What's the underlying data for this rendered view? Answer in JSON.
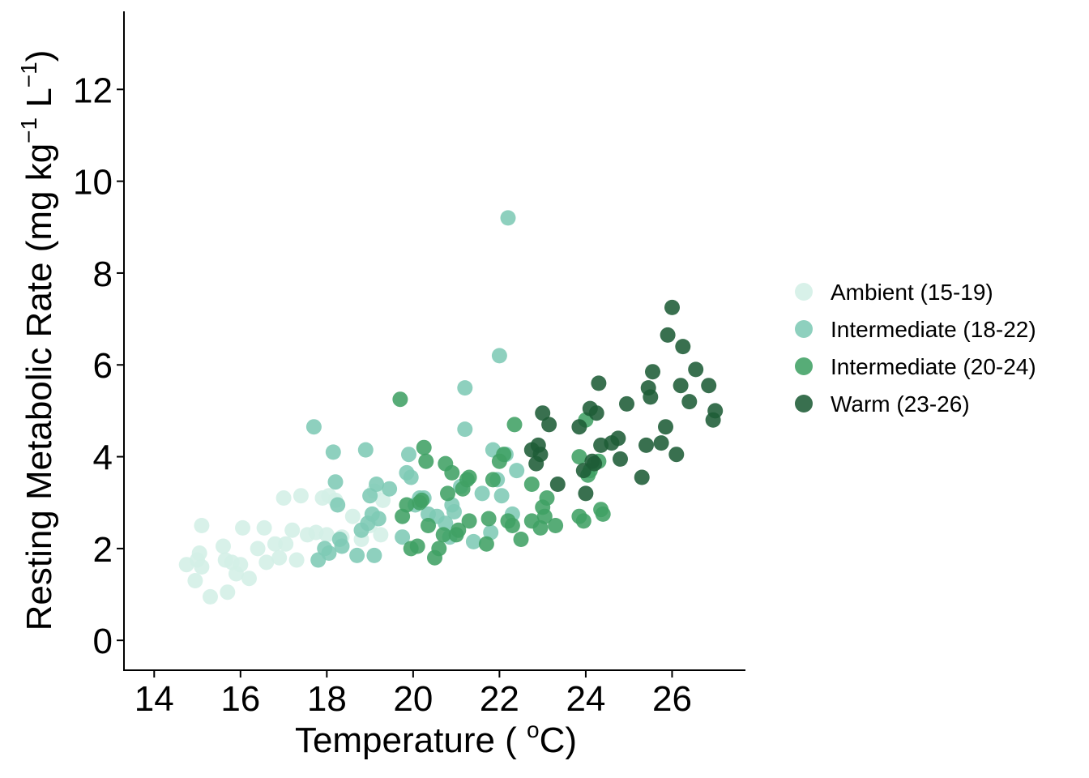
{
  "chart_data": {
    "type": "scatter",
    "xlabel_main": "Temperature ( ",
    "xlabel_degree": "o",
    "xlabel_unit": "C)",
    "ylabel_main": "Resting Metabolic Rate (mg kg",
    "ylabel_sup1": "−1",
    "ylabel_mid": " L",
    "ylabel_sup2": "−1",
    "ylabel_end": ")",
    "xlim": [
      13.3,
      27.7
    ],
    "ylim": [
      -0.65,
      13.7
    ],
    "xticks": [
      14,
      16,
      18,
      20,
      22,
      24,
      26
    ],
    "yticks": [
      0,
      2,
      4,
      6,
      8,
      10,
      12
    ],
    "grid": false,
    "legend_position": "right",
    "series": [
      {
        "name": "Ambient (15-19)",
        "color": "#d3efe6",
        "points": [
          [
            14.75,
            1.65
          ],
          [
            14.95,
            1.3
          ],
          [
            15.0,
            1.75
          ],
          [
            15.05,
            1.9
          ],
          [
            15.1,
            2.5
          ],
          [
            15.1,
            1.6
          ],
          [
            15.3,
            0.95
          ],
          [
            15.6,
            2.05
          ],
          [
            15.65,
            1.75
          ],
          [
            15.7,
            1.05
          ],
          [
            15.8,
            1.7
          ],
          [
            15.9,
            1.45
          ],
          [
            16.0,
            1.65
          ],
          [
            16.05,
            2.45
          ],
          [
            16.2,
            1.35
          ],
          [
            16.4,
            2.0
          ],
          [
            16.55,
            2.45
          ],
          [
            16.6,
            1.7
          ],
          [
            16.8,
            2.1
          ],
          [
            16.9,
            1.8
          ],
          [
            17.0,
            3.1
          ],
          [
            17.05,
            2.1
          ],
          [
            17.2,
            2.4
          ],
          [
            17.3,
            1.75
          ],
          [
            17.4,
            3.15
          ],
          [
            17.55,
            2.3
          ],
          [
            17.75,
            2.35
          ],
          [
            17.9,
            3.1
          ],
          [
            18.0,
            2.3
          ],
          [
            18.05,
            3.15
          ],
          [
            18.2,
            3.05
          ],
          [
            18.35,
            2.25
          ],
          [
            18.6,
            2.7
          ],
          [
            18.8,
            2.2
          ],
          [
            19.0,
            2.5
          ],
          [
            19.1,
            3.25
          ],
          [
            19.25,
            2.3
          ],
          [
            19.3,
            3.05
          ]
        ]
      },
      {
        "name": "Intermediate (18-22)",
        "color": "#7ecab5",
        "points": [
          [
            17.7,
            4.65
          ],
          [
            17.8,
            1.75
          ],
          [
            17.95,
            2.0
          ],
          [
            18.05,
            1.9
          ],
          [
            18.15,
            4.1
          ],
          [
            18.2,
            3.45
          ],
          [
            18.25,
            2.95
          ],
          [
            18.3,
            2.2
          ],
          [
            18.35,
            2.05
          ],
          [
            18.7,
            1.85
          ],
          [
            18.8,
            2.4
          ],
          [
            18.9,
            4.15
          ],
          [
            18.95,
            2.55
          ],
          [
            19.0,
            3.15
          ],
          [
            19.05,
            2.75
          ],
          [
            19.1,
            1.85
          ],
          [
            19.15,
            3.4
          ],
          [
            19.2,
            2.65
          ],
          [
            19.45,
            3.3
          ],
          [
            19.75,
            2.25
          ],
          [
            19.85,
            3.65
          ],
          [
            19.9,
            4.05
          ],
          [
            19.95,
            3.55
          ],
          [
            20.05,
            2.95
          ],
          [
            20.15,
            3.1
          ],
          [
            20.25,
            3.1
          ],
          [
            20.35,
            2.75
          ],
          [
            20.55,
            2.7
          ],
          [
            20.75,
            2.55
          ],
          [
            20.85,
            2.25
          ],
          [
            20.9,
            2.95
          ],
          [
            20.95,
            2.8
          ],
          [
            21.1,
            3.35
          ],
          [
            21.2,
            4.6
          ],
          [
            21.2,
            5.5
          ],
          [
            21.4,
            2.15
          ],
          [
            21.6,
            3.2
          ],
          [
            21.8,
            2.35
          ],
          [
            21.85,
            4.15
          ],
          [
            21.95,
            3.5
          ],
          [
            22.0,
            6.2
          ],
          [
            22.05,
            3.15
          ],
          [
            22.15,
            4.05
          ],
          [
            22.2,
            9.2
          ],
          [
            22.3,
            2.75
          ],
          [
            22.4,
            3.7
          ]
        ]
      },
      {
        "name": "Intermediate (20-24)",
        "color": "#40a064",
        "points": [
          [
            19.7,
            5.25
          ],
          [
            19.75,
            2.7
          ],
          [
            19.85,
            2.95
          ],
          [
            19.95,
            2.0
          ],
          [
            20.1,
            2.05
          ],
          [
            20.15,
            3.0
          ],
          [
            20.2,
            3.05
          ],
          [
            20.25,
            4.2
          ],
          [
            20.3,
            3.9
          ],
          [
            20.35,
            2.5
          ],
          [
            20.5,
            1.8
          ],
          [
            20.6,
            2.0
          ],
          [
            20.7,
            2.3
          ],
          [
            20.75,
            3.85
          ],
          [
            20.8,
            3.2
          ],
          [
            20.9,
            3.65
          ],
          [
            21.0,
            2.3
          ],
          [
            21.05,
            2.4
          ],
          [
            21.15,
            3.3
          ],
          [
            21.25,
            3.5
          ],
          [
            21.3,
            3.55
          ],
          [
            21.3,
            2.6
          ],
          [
            21.7,
            2.1
          ],
          [
            21.75,
            2.65
          ],
          [
            21.85,
            3.5
          ],
          [
            22.0,
            3.9
          ],
          [
            22.1,
            4.05
          ],
          [
            22.2,
            2.6
          ],
          [
            22.3,
            2.5
          ],
          [
            22.35,
            4.7
          ],
          [
            22.5,
            2.2
          ],
          [
            22.75,
            2.6
          ],
          [
            22.75,
            3.4
          ],
          [
            22.95,
            2.45
          ],
          [
            23.0,
            2.9
          ],
          [
            23.05,
            2.7
          ],
          [
            23.1,
            3.1
          ],
          [
            23.3,
            2.5
          ],
          [
            23.85,
            4.0
          ],
          [
            23.85,
            2.7
          ],
          [
            23.95,
            2.6
          ],
          [
            24.0,
            4.8
          ],
          [
            24.05,
            3.6
          ],
          [
            24.1,
            3.7
          ],
          [
            24.3,
            3.9
          ],
          [
            24.35,
            2.85
          ],
          [
            24.4,
            2.75
          ]
        ]
      },
      {
        "name": "Warm (23-26)",
        "color": "#1e5c37",
        "points": [
          [
            22.75,
            4.15
          ],
          [
            22.85,
            3.85
          ],
          [
            22.9,
            4.25
          ],
          [
            22.95,
            4.05
          ],
          [
            23.0,
            4.95
          ],
          [
            23.15,
            4.7
          ],
          [
            23.35,
            3.4
          ],
          [
            23.85,
            4.65
          ],
          [
            23.95,
            3.7
          ],
          [
            24.0,
            3.2
          ],
          [
            24.1,
            5.05
          ],
          [
            24.15,
            3.9
          ],
          [
            24.2,
            3.85
          ],
          [
            24.25,
            4.95
          ],
          [
            24.3,
            5.6
          ],
          [
            24.35,
            4.25
          ],
          [
            24.6,
            4.3
          ],
          [
            24.75,
            4.4
          ],
          [
            24.8,
            3.95
          ],
          [
            24.95,
            5.15
          ],
          [
            25.3,
            3.55
          ],
          [
            25.4,
            4.25
          ],
          [
            25.45,
            5.5
          ],
          [
            25.5,
            5.3
          ],
          [
            25.55,
            5.85
          ],
          [
            25.75,
            4.3
          ],
          [
            25.85,
            4.65
          ],
          [
            25.9,
            6.65
          ],
          [
            26.0,
            7.25
          ],
          [
            26.1,
            4.05
          ],
          [
            26.2,
            5.55
          ],
          [
            26.25,
            6.4
          ],
          [
            26.4,
            5.2
          ],
          [
            26.55,
            5.9
          ],
          [
            26.85,
            5.55
          ],
          [
            26.95,
            4.8
          ],
          [
            27.0,
            5.0
          ]
        ]
      }
    ]
  }
}
